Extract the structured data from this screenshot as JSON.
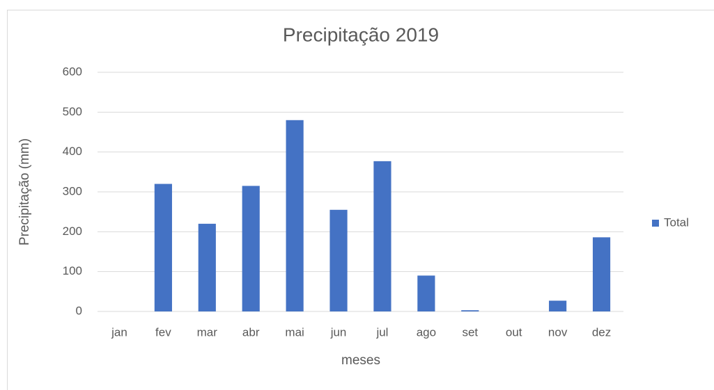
{
  "chart_data": {
    "type": "bar",
    "title": "Precipitação 2019",
    "x_label": "meses",
    "y_label": "Precipitação (mm)",
    "categories": [
      "jan",
      "fev",
      "mar",
      "abr",
      "mai",
      "jun",
      "jul",
      "ago",
      "set",
      "out",
      "nov",
      "dez"
    ],
    "series": [
      {
        "name": "Total",
        "color": "#4472c4",
        "values": [
          0,
          320,
          220,
          315,
          480,
          255,
          377,
          90,
          3,
          0,
          27,
          186
        ]
      }
    ],
    "ylim": [
      0,
      600
    ],
    "yticks": [
      0,
      100,
      200,
      300,
      400,
      500,
      600
    ],
    "grid": true,
    "legend": "right"
  }
}
